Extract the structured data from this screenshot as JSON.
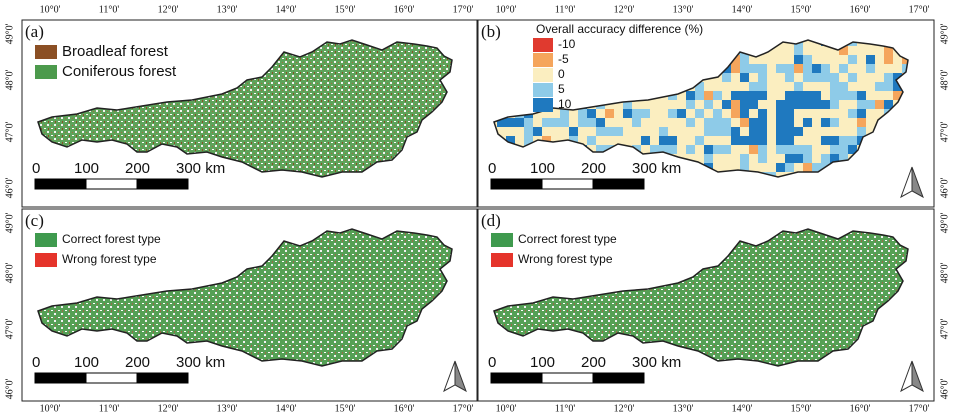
{
  "longitudes": [
    "10°0'",
    "11°0'",
    "12°0'",
    "13°0'",
    "14°0'",
    "15°0'",
    "16°0'",
    "17°0'"
  ],
  "latitudes": [
    "49°0'",
    "48°0'",
    "47°0'",
    "46°0'"
  ],
  "scale_labels": [
    "0",
    "100",
    "200",
    "300 km"
  ],
  "panels": [
    {
      "label": "(a)",
      "legend": [
        {
          "label": "Broadleaf forest",
          "color": "#8b4f24"
        },
        {
          "label": "Coniferous forest",
          "color": "#4c9a4c"
        }
      ]
    },
    {
      "label": "(b)",
      "colorbar": {
        "title": "Overall accuracy difference (%)",
        "items": [
          {
            "label": "-10",
            "color": "#e03a2f"
          },
          {
            "label": "-5",
            "color": "#f5a55c"
          },
          {
            "label": "0",
            "color": "#fbeec0"
          },
          {
            "label": "5",
            "color": "#8ecbe8"
          },
          {
            "label": "10",
            "color": "#1f79bf"
          }
        ]
      }
    },
    {
      "label": "(c)",
      "legend": [
        {
          "label": "Correct forest type",
          "color": "#3f9a4e"
        },
        {
          "label": "Wrong forest type",
          "color": "#e5342b"
        }
      ]
    },
    {
      "label": "(d)",
      "legend": [
        {
          "label": "Correct forest type",
          "color": "#3f9a4e"
        },
        {
          "label": "Wrong forest type",
          "color": "#e5342b"
        }
      ]
    }
  ]
}
